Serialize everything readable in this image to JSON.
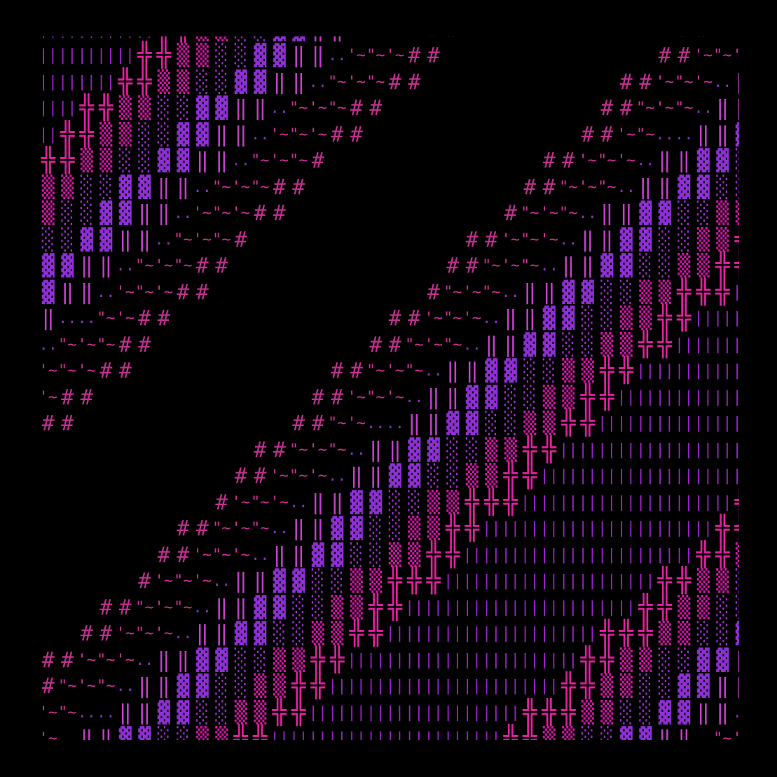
{
  "background": "#000000",
  "ramp": [
    {
      "level": 0,
      "glyph": " ",
      "color": "#000000"
    },
    {
      "level": 1,
      "glyph": "#",
      "color": "#c1308f"
    },
    {
      "level": 2,
      "glyph": "'~",
      "alt_glyph": "\"~",
      "color": "#d0309a"
    },
    {
      "level": 3,
      "glyph": "..",
      "color": "#8a2fc8"
    },
    {
      "level": 4,
      "glyph": "‖",
      "color": "#c23fc8"
    },
    {
      "level": 5,
      "glyph": "▓",
      "color": "#8f2fd6"
    },
    {
      "level": 6,
      "glyph": "░",
      "color": "#9a30c8"
    },
    {
      "level": 7,
      "glyph": "▒",
      "color": "#d414a8"
    },
    {
      "level": 8,
      "glyph": "╬",
      "color": "#e020a0"
    },
    {
      "level": 9,
      "glyph": "||",
      "color": "#9a22c8"
    }
  ]
}
